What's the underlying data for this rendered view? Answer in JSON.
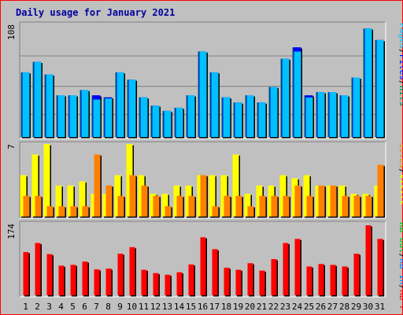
{
  "chart_data": {
    "type": "bar",
    "title": "Daily usage for January 2021",
    "categories": [
      "1",
      "2",
      "3",
      "4",
      "5",
      "6",
      "7",
      "8",
      "9",
      "10",
      "11",
      "12",
      "13",
      "14",
      "15",
      "16",
      "17",
      "18",
      "19",
      "20",
      "21",
      "22",
      "23",
      "24",
      "25",
      "26",
      "27",
      "28",
      "29",
      "30",
      "31"
    ],
    "weekend_days": [
      "2",
      "3",
      "9",
      "10",
      "16",
      "17",
      "23",
      "24",
      "30",
      "31"
    ],
    "colors": {
      "hits": "#008040",
      "files": "#0000ff",
      "pages": "#00c0ff",
      "visits": "#ffff00",
      "sites": "#ff8000",
      "kbin": "#0080ff",
      "kbout": "#00c000",
      "kbf": "#ff0000",
      "weekday_label": "#000000",
      "weekend_label": "#008040",
      "title": "#0000a0"
    },
    "panels": [
      {
        "name": "hits-files-pages",
        "y_max_label": "108",
        "y_max": 108,
        "legend": [
          {
            "text": "Hits",
            "color": "#008040"
          },
          {
            "text": "Files",
            "color": "#0000ff"
          },
          {
            "text": "Pages",
            "color": "#00c0ff"
          }
        ],
        "series": [
          {
            "name": "Hits",
            "values": [
              62,
              72,
              60,
              40,
              40,
              45,
              40,
              38,
              62,
              55,
              38,
              30,
              25,
              28,
              40,
              82,
              62,
              38,
              33,
              40,
              33,
              48,
              75,
              86,
              40,
              43,
              43,
              40,
              57,
              104,
              93
            ]
          },
          {
            "name": "Files",
            "values": [
              62,
              72,
              60,
              40,
              40,
              45,
              40,
              38,
              62,
              55,
              38,
              30,
              25,
              28,
              40,
              82,
              62,
              38,
              33,
              40,
              33,
              48,
              75,
              86,
              40,
              43,
              43,
              40,
              57,
              104,
              93
            ]
          },
          {
            "name": "Pages",
            "values": [
              62,
              72,
              60,
              40,
              40,
              45,
              36,
              37,
              62,
              55,
              38,
              30,
              25,
              28,
              40,
              82,
              62,
              38,
              33,
              40,
              33,
              48,
              75,
              82,
              38,
              43,
              43,
              40,
              57,
              104,
              93
            ]
          }
        ]
      },
      {
        "name": "visits-sites",
        "y_max_label": "7",
        "y_max": 7,
        "legend": [
          {
            "text": "Visits",
            "color": "#ffff00"
          },
          {
            "text": "Sites",
            "color": "#ff8000"
          }
        ],
        "series": [
          {
            "name": "Visits",
            "values": [
              4,
              6,
              7,
              3,
              3,
              3.4,
              2.2,
              2.2,
              4,
              7,
              4,
              2.2,
              2.2,
              3,
              3,
              4,
              4,
              4,
              6,
              2.2,
              3,
              3,
              4,
              3.7,
              4,
              3,
              3,
              3,
              2.2,
              2.2,
              3
            ]
          },
          {
            "name": "Sites",
            "values": [
              2,
              2,
              1,
              1,
              1,
              1,
              6,
              3,
              2,
              4,
              3,
              2,
              1,
              2,
              2,
              4,
              1,
              2,
              2,
              1,
              2,
              2,
              2,
              3,
              2,
              3,
              3,
              2,
              2,
              2,
              5
            ]
          }
        ]
      },
      {
        "name": "kb-volume",
        "y_max_label": "174",
        "y_max": 174,
        "legend": [
          {
            "text": "KB F",
            "color": "#ff0000"
          },
          {
            "text": "KB In",
            "color": "#0080ff"
          },
          {
            "text": "KB Out",
            "color": "#00c000"
          }
        ],
        "series": [
          {
            "name": "KB F",
            "values": [
              105,
              127,
              100,
              72,
              74,
              82,
              63,
              65,
              101,
              117,
              62,
              54,
              50,
              56,
              75,
              141,
              112,
              67,
              62,
              78,
              60,
              88,
              127,
              137,
              70,
              76,
              74,
              70,
              101,
              170,
              137
            ]
          }
        ]
      }
    ]
  }
}
